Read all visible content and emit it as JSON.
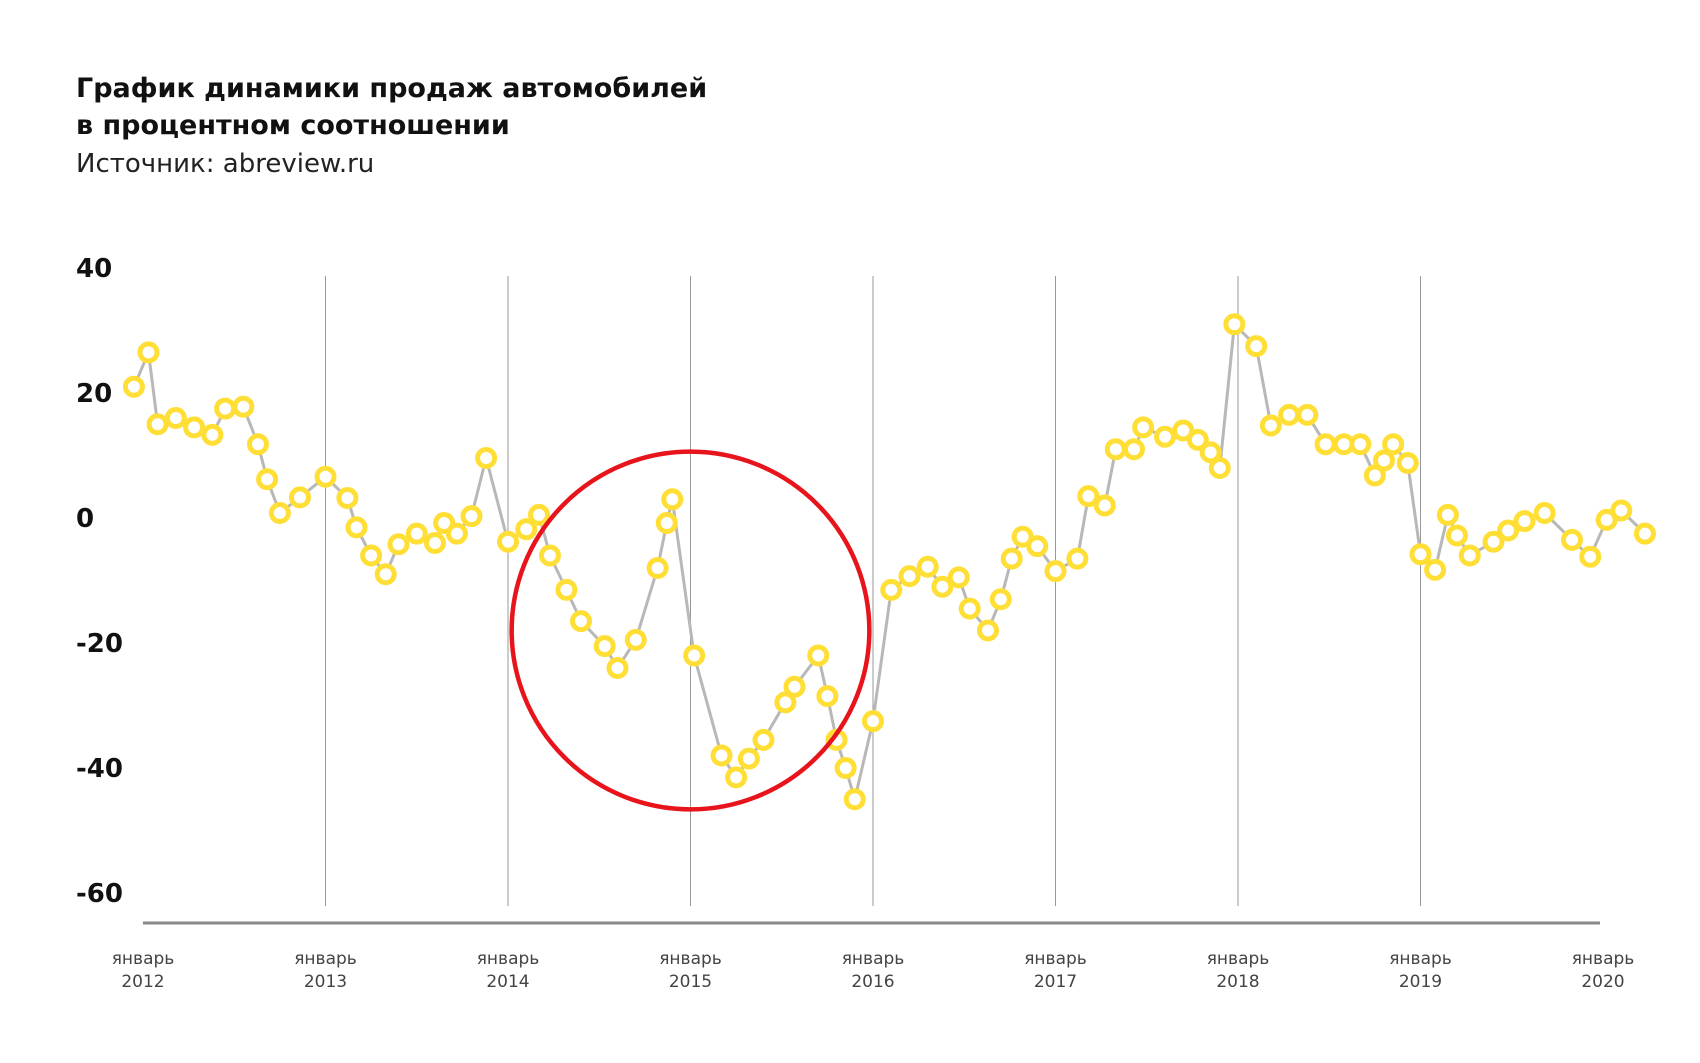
{
  "title_line1": "График динамики продаж автомобилей",
  "title_line2": "в процентном соотношении",
  "source": "Источник: abreview.ru",
  "chart_data": {
    "type": "line",
    "ylim": [
      -60,
      40
    ],
    "yticks": [
      "40",
      "20",
      "0",
      "-20",
      "-40",
      "-60"
    ],
    "ytick_values": [
      40,
      20,
      0,
      -20,
      -40,
      -60
    ],
    "xlim": [
      2012,
      2020.25
    ],
    "xticks": [
      {
        "label1": "январь",
        "label2": "2012",
        "value": 2012
      },
      {
        "label1": "январь",
        "label2": "2013",
        "value": 2013
      },
      {
        "label1": "январь",
        "label2": "2014",
        "value": 2014
      },
      {
        "label1": "январь",
        "label2": "2015",
        "value": 2015
      },
      {
        "label1": "январь",
        "label2": "2016",
        "value": 2016
      },
      {
        "label1": "январь",
        "label2": "2017",
        "value": 2017
      },
      {
        "label1": "январь",
        "label2": "2018",
        "value": 2018
      },
      {
        "label1": "январь",
        "label2": "2019",
        "value": 2019
      },
      {
        "label1": "январь",
        "label2": "2020",
        "value": 2020
      }
    ],
    "grid": "vertical",
    "colors": {
      "line": "#b8b8b8",
      "marker": "#ffde36",
      "highlight": "#e8141b",
      "axis": "#888888"
    },
    "highlight_circle": {
      "cx": 2015,
      "cy": -18,
      "r_x": 0.98
    },
    "series": [
      {
        "points": [
          [
            2011.95,
            21
          ],
          [
            2012.03,
            26.5
          ],
          [
            2012.08,
            15
          ],
          [
            2012.18,
            16
          ],
          [
            2012.28,
            14.5
          ],
          [
            2012.38,
            13.3
          ],
          [
            2012.45,
            17.5
          ],
          [
            2012.55,
            17.8
          ],
          [
            2012.63,
            11.8
          ],
          [
            2012.68,
            6.2
          ],
          [
            2012.75,
            0.8
          ],
          [
            2012.86,
            3.3
          ],
          [
            2013.0,
            6.6
          ],
          [
            2013.12,
            3.2
          ],
          [
            2013.17,
            -1.5
          ],
          [
            2013.25,
            -6
          ],
          [
            2013.33,
            -9
          ],
          [
            2013.4,
            -4.2
          ],
          [
            2013.5,
            -2.5
          ],
          [
            2013.6,
            -4
          ],
          [
            2013.65,
            -0.8
          ],
          [
            2013.72,
            -2.5
          ],
          [
            2013.8,
            0.3
          ],
          [
            2013.88,
            9.6
          ],
          [
            2014.0,
            -3.8
          ],
          [
            2014.1,
            -1.8
          ],
          [
            2014.17,
            0.5
          ],
          [
            2014.23,
            -6
          ],
          [
            2014.32,
            -11.5
          ],
          [
            2014.4,
            -16.5
          ],
          [
            2014.53,
            -20.5
          ],
          [
            2014.6,
            -24
          ],
          [
            2014.7,
            -19.5
          ],
          [
            2014.82,
            -8
          ],
          [
            2014.87,
            -0.8
          ],
          [
            2014.9,
            3
          ],
          [
            2015.02,
            -22
          ],
          [
            2015.17,
            -38
          ],
          [
            2015.25,
            -41.5
          ],
          [
            2015.32,
            -38.5
          ],
          [
            2015.4,
            -35.5
          ],
          [
            2015.52,
            -29.5
          ],
          [
            2015.57,
            -27
          ],
          [
            2015.7,
            -22
          ],
          [
            2015.75,
            -28.5
          ],
          [
            2015.8,
            -35.5
          ],
          [
            2015.85,
            -40
          ],
          [
            2015.9,
            -45
          ],
          [
            2016.0,
            -32.5
          ],
          [
            2016.1,
            -11.5
          ],
          [
            2016.2,
            -9.3
          ],
          [
            2016.3,
            -7.8
          ],
          [
            2016.38,
            -11
          ],
          [
            2016.47,
            -9.5
          ],
          [
            2016.53,
            -14.5
          ],
          [
            2016.63,
            -18
          ],
          [
            2016.7,
            -13
          ],
          [
            2016.76,
            -6.5
          ],
          [
            2016.82,
            -3
          ],
          [
            2016.9,
            -4.5
          ],
          [
            2017.0,
            -8.5
          ],
          [
            2017.12,
            -6.5
          ],
          [
            2017.18,
            3.5
          ],
          [
            2017.27,
            2
          ],
          [
            2017.33,
            11
          ],
          [
            2017.43,
            11
          ],
          [
            2017.48,
            14.5
          ],
          [
            2017.6,
            13
          ],
          [
            2017.7,
            14
          ],
          [
            2017.78,
            12.5
          ],
          [
            2017.85,
            10.5
          ],
          [
            2017.9,
            8
          ],
          [
            2017.98,
            31
          ],
          [
            2018.1,
            27.5
          ],
          [
            2018.18,
            14.8
          ],
          [
            2018.28,
            16.5
          ],
          [
            2018.38,
            16.5
          ],
          [
            2018.48,
            11.8
          ],
          [
            2018.58,
            11.8
          ],
          [
            2018.67,
            11.8
          ],
          [
            2018.75,
            6.8
          ],
          [
            2018.8,
            9.2
          ],
          [
            2018.85,
            11.8
          ],
          [
            2018.93,
            8.8
          ],
          [
            2019.0,
            -5.8
          ],
          [
            2019.08,
            -8.3
          ],
          [
            2019.15,
            0.5
          ],
          [
            2019.2,
            -2.8
          ],
          [
            2019.27,
            -6
          ],
          [
            2019.4,
            -3.8
          ],
          [
            2019.48,
            -2
          ],
          [
            2019.57,
            -0.5
          ],
          [
            2019.68,
            0.8
          ],
          [
            2019.83,
            -3.5
          ],
          [
            2019.93,
            -6.2
          ],
          [
            2020.02,
            -0.3
          ],
          [
            2020.1,
            1.2
          ],
          [
            2020.23,
            -2.5
          ]
        ]
      }
    ]
  }
}
